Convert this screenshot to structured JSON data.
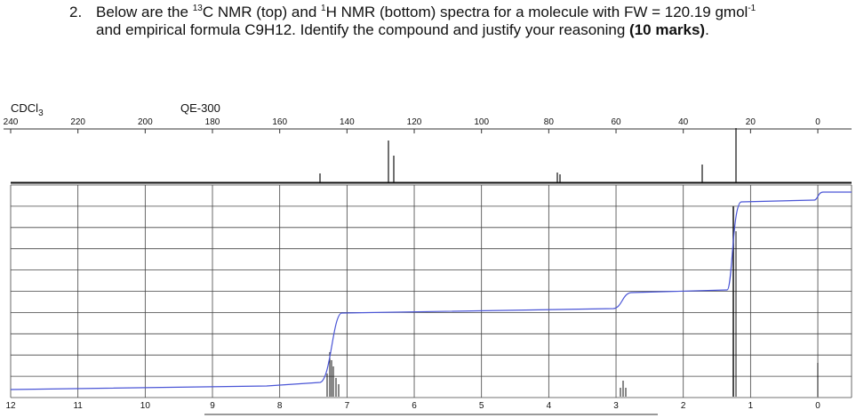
{
  "question": {
    "number": "2.",
    "line1": [
      "Below are the ",
      "13",
      "C NMR (top) and ",
      "1",
      "H NMR (bottom) spectra for a molecule with FW = 120.19 gmol",
      "-1"
    ],
    "line2": "and empirical formula C9H12. Identify the compound and justify your reasoning ",
    "line2_bold": "(10 marks)",
    "line2_end": "."
  },
  "spectrum": {
    "solvent": [
      "CDCl",
      "3"
    ],
    "instrument": "QE-300",
    "top_ticks": [
      "240",
      "220",
      "200",
      "180",
      "160",
      "140",
      "120",
      "100",
      "80",
      "60",
      "40",
      "20",
      "0"
    ],
    "bottom_ticks": [
      "12",
      "11",
      "10",
      "9",
      "8",
      "7",
      "6",
      "5",
      "4",
      "3",
      "2",
      "1",
      "0"
    ]
  }
}
